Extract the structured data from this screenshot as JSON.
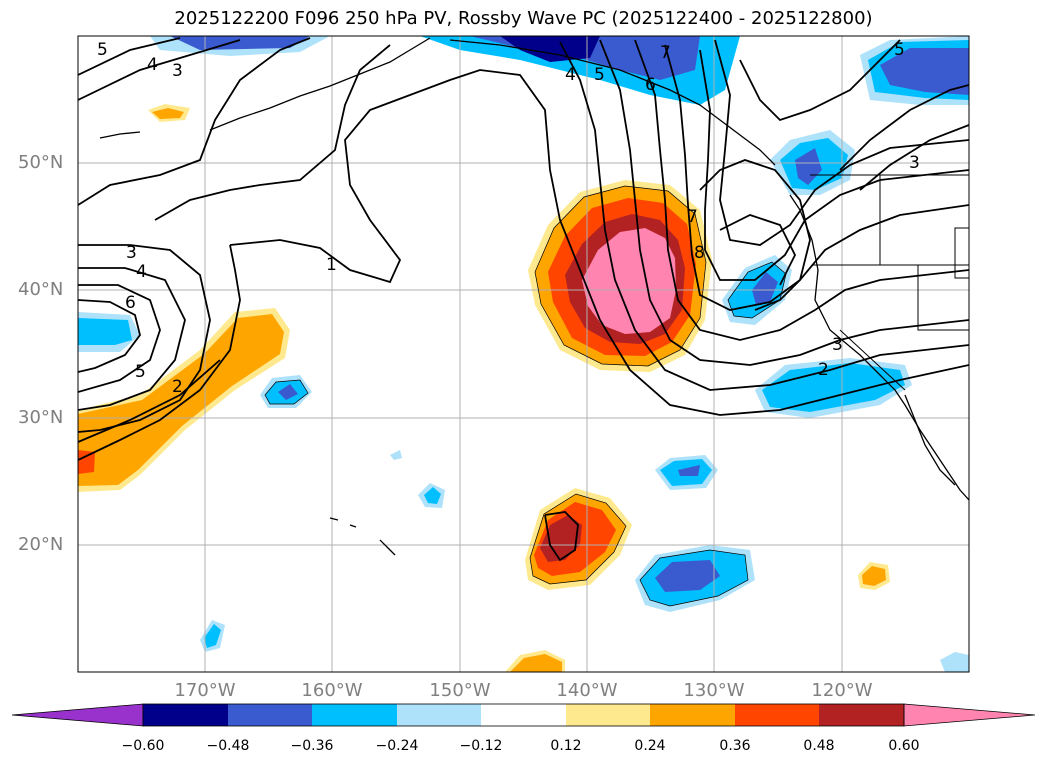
{
  "title": "2025122200 F096 250 hPa PV, Rossby Wave PC (2025122400 - 2025122800)",
  "lat_labels": [
    "50°N",
    "40°N",
    "30°N",
    "20°N"
  ],
  "lon_labels": [
    "170°W",
    "160°W",
    "150°W",
    "140°W",
    "130°W",
    "120°W"
  ],
  "colorbar": {
    "ticks": [
      "−0.60",
      "−0.48",
      "−0.36",
      "−0.24",
      "−0.12",
      "0.12",
      "0.24",
      "0.36",
      "0.48",
      "0.60"
    ],
    "colors": [
      "#9932cc",
      "#00008b",
      "#3a5bd0",
      "#00bfff",
      "#aee1fa",
      "#ffffff",
      "#ffe98f",
      "#ffa500",
      "#ff4500",
      "#b22222",
      "#ff85b0"
    ]
  },
  "contour_labels": [
    "5",
    "4",
    "3",
    "3",
    "4",
    "6",
    "5",
    "2",
    "1",
    "4",
    "5",
    "6",
    "7",
    "7",
    "8",
    "3",
    "2",
    "3",
    "5"
  ],
  "map_colors": {
    "neg_light": "#aee1fa",
    "neg_mid": "#00bfff",
    "neg_strong": "#3a5bd0",
    "neg_max": "#00008b",
    "pos_light": "#ffe98f",
    "pos_mid": "#ffa500",
    "pos_strong": "#ff4500",
    "pos_max": "#b22222",
    "pos_peak": "#ff85b0",
    "grid": "#b0b0b0"
  }
}
